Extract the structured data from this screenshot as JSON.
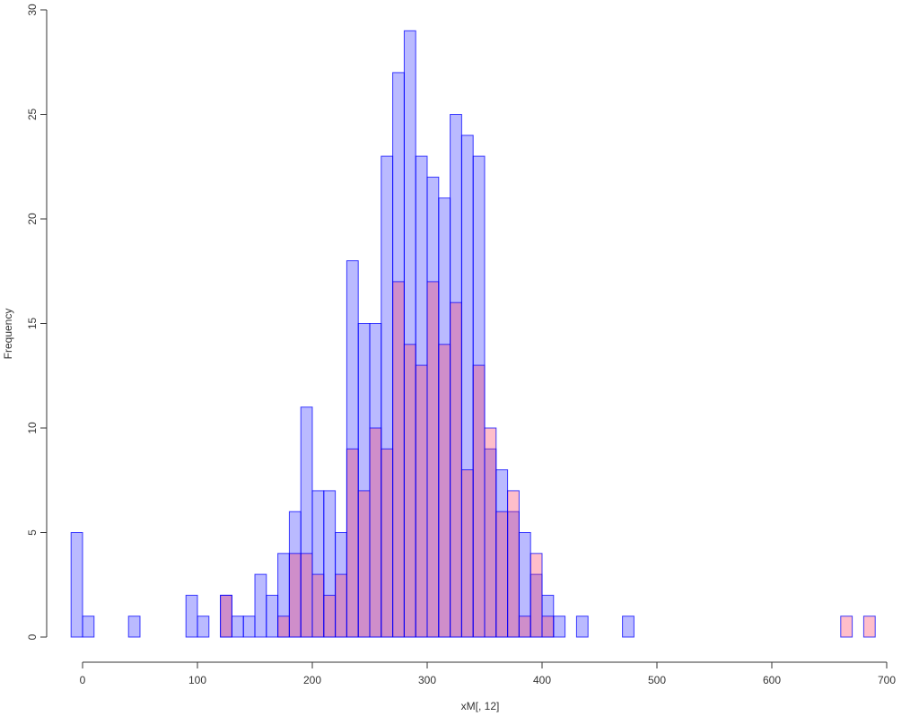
{
  "chart_data": {
    "type": "histogram",
    "x_label": "xM[, 12]",
    "y_label": "Frequency",
    "bins": [
      -10,
      0,
      10,
      20,
      30,
      40,
      50,
      60,
      70,
      80,
      90,
      100,
      110,
      120,
      130,
      140,
      150,
      160,
      170,
      180,
      190,
      200,
      210,
      220,
      230,
      240,
      250,
      260,
      270,
      280,
      290,
      300,
      310,
      320,
      330,
      340,
      350,
      360,
      370,
      380,
      390,
      400,
      410,
      420,
      430,
      440,
      450,
      460,
      470,
      480,
      490,
      500,
      510,
      520,
      530,
      540,
      550,
      560,
      570,
      580,
      590,
      600,
      610,
      620,
      630,
      640,
      650,
      660,
      670,
      680,
      690
    ],
    "series": [
      {
        "color": "#0000ff",
        "values": [
          5,
          1,
          0,
          0,
          0,
          1,
          0,
          0,
          0,
          0,
          2,
          1,
          0,
          2,
          1,
          1,
          3,
          2,
          4,
          6,
          11,
          7,
          7,
          5,
          18,
          15,
          15,
          23,
          27,
          29,
          23,
          22,
          21,
          25,
          24,
          23,
          9,
          8,
          6,
          5,
          3,
          2,
          1,
          0,
          1,
          0,
          0,
          0,
          1,
          0,
          0,
          0,
          0,
          0,
          0,
          0,
          0,
          0,
          0,
          0,
          0,
          0,
          0,
          0,
          0,
          0,
          0,
          0,
          0,
          0
        ]
      },
      {
        "color": "#ff6680",
        "values": [
          0,
          0,
          0,
          0,
          0,
          0,
          0,
          0,
          0,
          0,
          0,
          0,
          0,
          2,
          0,
          0,
          0,
          0,
          1,
          4,
          4,
          3,
          2,
          3,
          9,
          7,
          10,
          9,
          17,
          14,
          13,
          17,
          14,
          16,
          8,
          13,
          10,
          6,
          7,
          1,
          4,
          1,
          0,
          0,
          0,
          0,
          0,
          0,
          0,
          0,
          0,
          0,
          0,
          0,
          0,
          0,
          0,
          0,
          0,
          0,
          0,
          0,
          0,
          0,
          0,
          0,
          0,
          1,
          0,
          1
        ]
      }
    ],
    "xlim": [
      0,
      700
    ],
    "xticks": [
      0,
      100,
      200,
      300,
      400,
      500,
      600,
      700
    ],
    "ylim": [
      0,
      30
    ],
    "yticks": [
      0,
      5,
      10,
      15,
      20,
      25,
      30
    ]
  }
}
